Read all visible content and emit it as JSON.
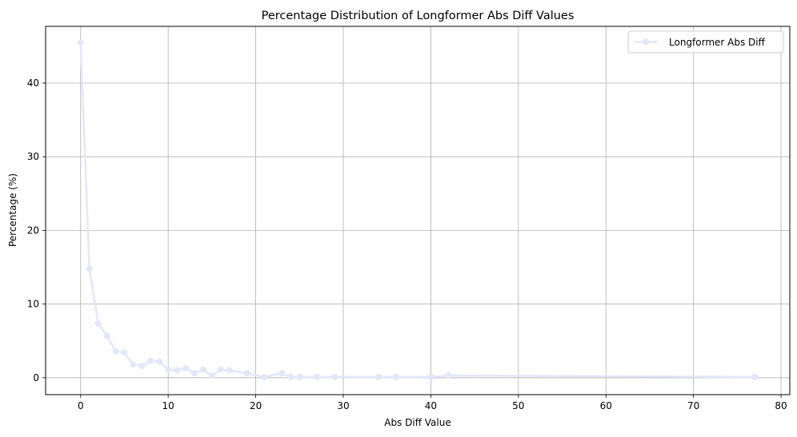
{
  "chart_data": {
    "type": "line",
    "title": "Percentage Distribution of Longformer Abs Diff Values",
    "xlabel": "Abs Diff Value",
    "ylabel": "Percentage (%)",
    "xlim": [
      -4,
      81
    ],
    "ylim": [
      -2.3,
      47.7
    ],
    "xticks": [
      0,
      10,
      20,
      30,
      40,
      50,
      60,
      70,
      80
    ],
    "yticks": [
      0,
      10,
      20,
      30,
      40
    ],
    "grid": true,
    "legend_position": "top-right",
    "series": [
      {
        "name": "Longformer Abs Diff",
        "color": "#e6e6fa",
        "marker": "circle",
        "x": [
          0,
          1,
          2,
          3,
          4,
          5,
          6,
          7,
          8,
          9,
          10,
          11,
          12,
          13,
          14,
          15,
          16,
          17,
          19,
          21,
          23,
          24,
          25,
          27,
          29,
          34,
          36,
          40,
          42,
          77
        ],
        "y": [
          45.5,
          14.8,
          7.4,
          5.7,
          3.6,
          3.4,
          1.8,
          1.6,
          2.3,
          2.2,
          1.1,
          1.0,
          1.3,
          0.6,
          1.1,
          0.3,
          1.1,
          1.0,
          0.6,
          0.1,
          0.6,
          0.1,
          0.1,
          0.1,
          0.1,
          0.1,
          0.1,
          0.1,
          0.3,
          0.1
        ]
      }
    ]
  }
}
